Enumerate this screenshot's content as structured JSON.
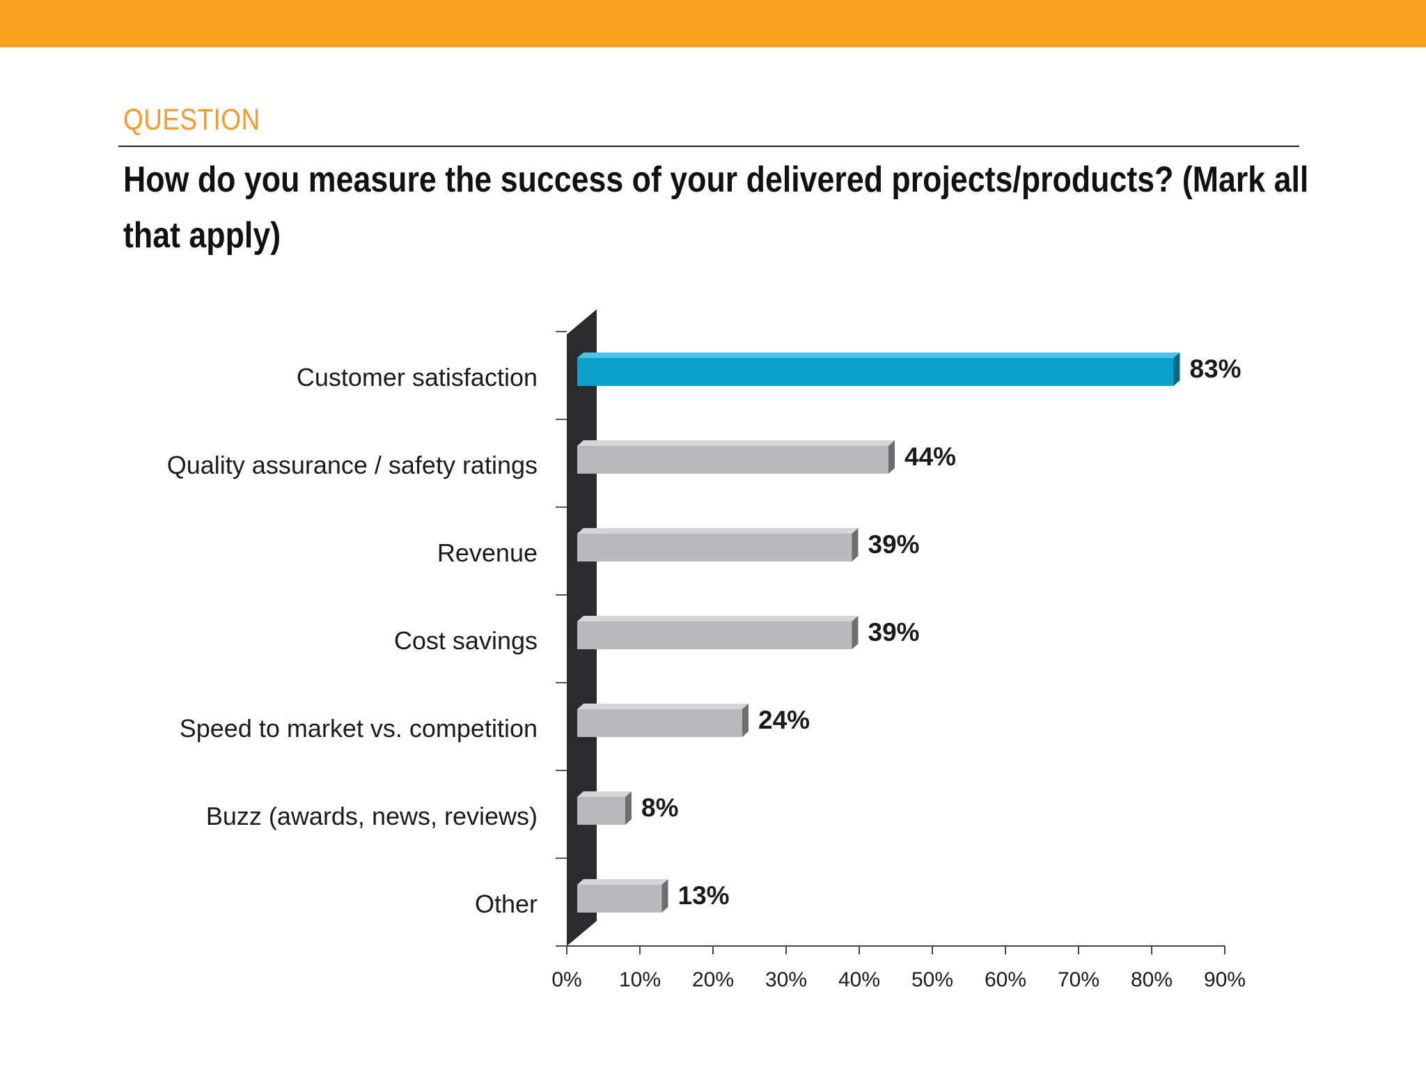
{
  "header": {
    "eyebrow": "QUESTION",
    "question": "How do you measure the success of your delivered projects/products? (Mark all that apply)"
  },
  "colors": {
    "top_band": "#f8a31f",
    "eyebrow": "#f39a2a",
    "highlight_bar": "#0aa0c9",
    "bar": "#b9b9bb"
  },
  "chart_data": {
    "type": "bar",
    "orientation": "horizontal",
    "categories": [
      "Customer satisfaction",
      "Quality assurance / safety ratings",
      "Revenue",
      "Cost savings",
      "Speed to market vs. competition",
      "Buzz (awards, news, reviews)",
      "Other"
    ],
    "values": [
      83,
      44,
      39,
      39,
      24,
      8,
      13
    ],
    "value_labels": [
      "83%",
      "44%",
      "39%",
      "39%",
      "24%",
      "8%",
      "13%"
    ],
    "highlight_index": 0,
    "xlim": [
      0,
      90
    ],
    "xticks": [
      0,
      10,
      20,
      30,
      40,
      50,
      60,
      70,
      80,
      90
    ],
    "xtick_labels": [
      "0%",
      "10%",
      "20%",
      "30%",
      "40%",
      "50%",
      "60%",
      "70%",
      "80%",
      "90%"
    ],
    "grid": false,
    "style": "3d"
  }
}
